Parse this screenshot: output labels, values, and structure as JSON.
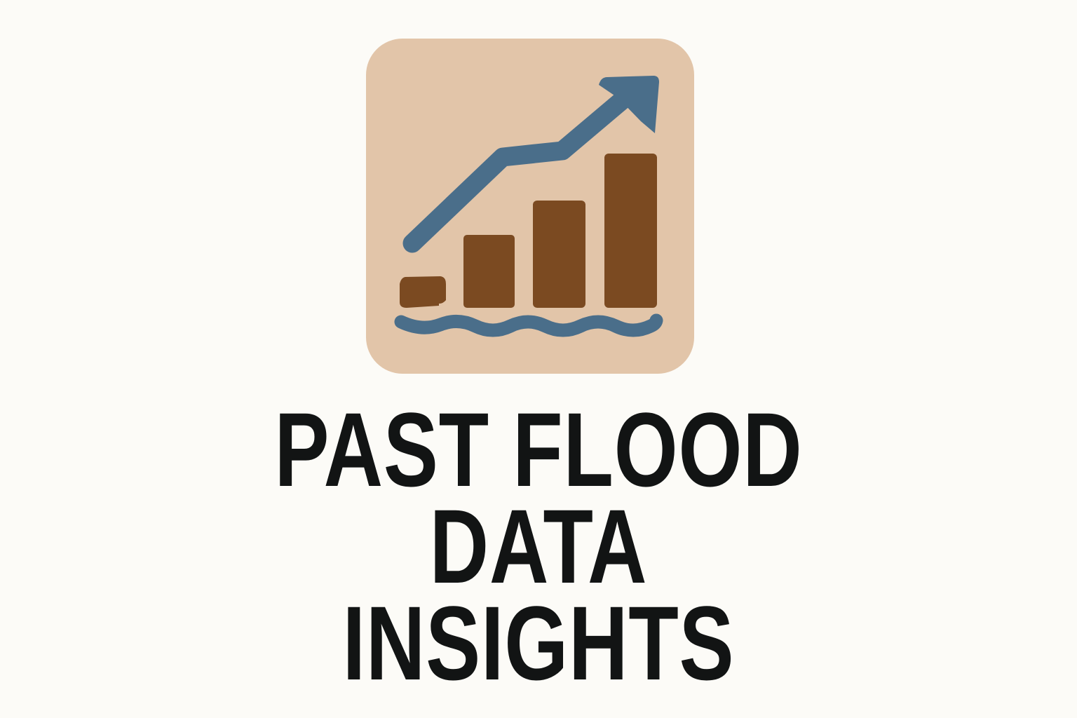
{
  "logo": {
    "icon": "rising-flood-chart-icon",
    "colors": {
      "tile": "#e2c5a9",
      "bars": "#7b4a21",
      "arrow": "#4a6e8a",
      "water": "#4a6e8a"
    }
  },
  "title": {
    "lines": [
      "PAST FLOOD",
      "DATA",
      "INSIGHTS"
    ]
  },
  "colors": {
    "background": "#fcfbf7",
    "text": "#121414"
  }
}
